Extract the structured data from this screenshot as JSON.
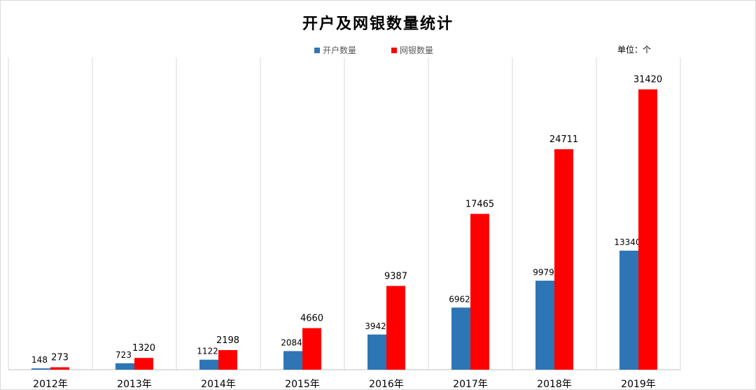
{
  "chart_data": {
    "type": "bar",
    "title": "开户及网银数量统计",
    "unit_label": "单位：个",
    "categories": [
      "2012年",
      "2013年",
      "2014年",
      "2015年",
      "2016年",
      "2017年",
      "2018年",
      "2019年"
    ],
    "series": [
      {
        "name": "开户数量",
        "color": "#2e75b6",
        "values": [
          148,
          723,
          1122,
          2084,
          3942,
          6962,
          9979,
          13340
        ]
      },
      {
        "name": "网银数量",
        "color": "#ff0000",
        "values": [
          273,
          1320,
          2198,
          4660,
          9387,
          17465,
          24711,
          31420
        ]
      }
    ],
    "ylim": [
      0,
      35000
    ],
    "grid": "vertical-separators",
    "legend": "top-center"
  }
}
